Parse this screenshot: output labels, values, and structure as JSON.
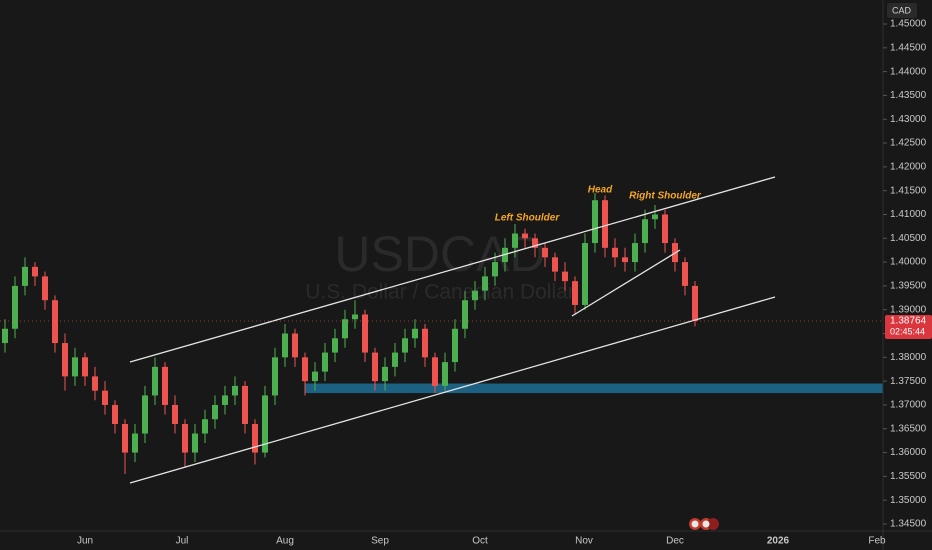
{
  "chart_data": {
    "type": "candlestick",
    "symbol": "USDCAD",
    "description": "U.S. Dollar / Canadian Dollar",
    "currency": "CAD",
    "up_color": "#4caf50",
    "down_color": "#ef5350",
    "grid": false,
    "categories": [
      "Jun",
      "Jul",
      "Aug",
      "Sep",
      "Oct",
      "Nov",
      "Dec",
      "2026",
      "Feb"
    ],
    "ylim": [
      1.34374,
      1.45504
    ],
    "yticks": [
      {
        "value": 1.345,
        "label": "1.34500"
      },
      {
        "value": 1.35,
        "label": "1.35000"
      },
      {
        "value": 1.355,
        "label": "1.35500"
      },
      {
        "value": 1.36,
        "label": "1.36000"
      },
      {
        "value": 1.365,
        "label": "1.36500"
      },
      {
        "value": 1.37,
        "label": "1.37000"
      },
      {
        "value": 1.375,
        "label": "1.37500"
      },
      {
        "value": 1.38,
        "label": "1.38000"
      },
      {
        "value": 1.385,
        "label": "1.38500"
      },
      {
        "value": 1.39,
        "label": "1.39000"
      },
      {
        "value": 1.395,
        "label": "1.39500"
      },
      {
        "value": 1.4,
        "label": "1.40000"
      },
      {
        "value": 1.405,
        "label": "1.40500"
      },
      {
        "value": 1.41,
        "label": "1.41000"
      },
      {
        "value": 1.415,
        "label": "1.41500"
      },
      {
        "value": 1.42,
        "label": "1.42000"
      },
      {
        "value": 1.425,
        "label": "1.42500"
      },
      {
        "value": 1.43,
        "label": "1.43000"
      },
      {
        "value": 1.435,
        "label": "1.43500"
      },
      {
        "value": 1.44,
        "label": "1.44000"
      },
      {
        "value": 1.445,
        "label": "1.44500"
      },
      {
        "value": 1.45,
        "label": "1.45000"
      }
    ],
    "last_price": 1.38764,
    "countdown": "02:45:44",
    "zone": [
      1.3725,
      1.3745
    ],
    "annotations": [
      "Left Shoulder",
      "Head",
      "Right Shoulder"
    ],
    "candles": [
      [
        1.383,
        1.388,
        1.381,
        1.386
      ],
      [
        1.386,
        1.397,
        1.384,
        1.395
      ],
      [
        1.395,
        1.401,
        1.393,
        1.399
      ],
      [
        1.399,
        1.4,
        1.395,
        1.397
      ],
      [
        1.397,
        1.398,
        1.39,
        1.392
      ],
      [
        1.392,
        1.393,
        1.381,
        1.383
      ],
      [
        1.383,
        1.385,
        1.373,
        1.376
      ],
      [
        1.376,
        1.382,
        1.374,
        1.38
      ],
      [
        1.38,
        1.381,
        1.374,
        1.376
      ],
      [
        1.376,
        1.378,
        1.371,
        1.373
      ],
      [
        1.373,
        1.375,
        1.368,
        1.37
      ],
      [
        1.37,
        1.371,
        1.364,
        1.366
      ],
      [
        1.366,
        1.367,
        1.3555,
        1.36
      ],
      [
        1.36,
        1.366,
        1.358,
        1.364
      ],
      [
        1.364,
        1.374,
        1.362,
        1.372
      ],
      [
        1.372,
        1.38,
        1.37,
        1.378
      ],
      [
        1.378,
        1.379,
        1.368,
        1.37
      ],
      [
        1.37,
        1.372,
        1.364,
        1.366
      ],
      [
        1.366,
        1.367,
        1.357,
        1.36
      ],
      [
        1.36,
        1.366,
        1.358,
        1.364
      ],
      [
        1.364,
        1.369,
        1.362,
        1.367
      ],
      [
        1.367,
        1.372,
        1.365,
        1.37
      ],
      [
        1.37,
        1.374,
        1.368,
        1.372
      ],
      [
        1.372,
        1.376,
        1.37,
        1.374
      ],
      [
        1.374,
        1.375,
        1.364,
        1.366
      ],
      [
        1.366,
        1.367,
        1.3575,
        1.36
      ],
      [
        1.36,
        1.374,
        1.359,
        1.372
      ],
      [
        1.372,
        1.382,
        1.37,
        1.38
      ],
      [
        1.38,
        1.387,
        1.378,
        1.385
      ],
      [
        1.385,
        1.386,
        1.378,
        1.38
      ],
      [
        1.38,
        1.381,
        1.372,
        1.375
      ],
      [
        1.375,
        1.379,
        1.373,
        1.377
      ],
      [
        1.377,
        1.383,
        1.375,
        1.381
      ],
      [
        1.381,
        1.386,
        1.379,
        1.384
      ],
      [
        1.384,
        1.39,
        1.382,
        1.388
      ],
      [
        1.388,
        1.392,
        1.386,
        1.389
      ],
      [
        1.389,
        1.39,
        1.379,
        1.381
      ],
      [
        1.381,
        1.382,
        1.373,
        1.375
      ],
      [
        1.375,
        1.38,
        1.373,
        1.378
      ],
      [
        1.378,
        1.383,
        1.376,
        1.381
      ],
      [
        1.381,
        1.386,
        1.379,
        1.384
      ],
      [
        1.384,
        1.388,
        1.382,
        1.386
      ],
      [
        1.386,
        1.387,
        1.378,
        1.38
      ],
      [
        1.38,
        1.381,
        1.3725,
        1.374
      ],
      [
        1.374,
        1.381,
        1.373,
        1.379
      ],
      [
        1.379,
        1.388,
        1.377,
        1.386
      ],
      [
        1.386,
        1.394,
        1.384,
        1.392
      ],
      [
        1.392,
        1.396,
        1.39,
        1.394
      ],
      [
        1.394,
        1.399,
        1.392,
        1.397
      ],
      [
        1.397,
        1.402,
        1.395,
        1.4
      ],
      [
        1.4,
        1.405,
        1.398,
        1.403
      ],
      [
        1.403,
        1.408,
        1.401,
        1.406
      ],
      [
        1.406,
        1.407,
        1.403,
        1.405
      ],
      [
        1.405,
        1.406,
        1.401,
        1.403
      ],
      [
        1.403,
        1.404,
        1.399,
        1.401
      ],
      [
        1.401,
        1.402,
        1.396,
        1.398
      ],
      [
        1.398,
        1.4,
        1.394,
        1.396
      ],
      [
        1.396,
        1.397,
        1.389,
        1.391
      ],
      [
        1.391,
        1.406,
        1.39,
        1.404
      ],
      [
        1.404,
        1.4145,
        1.402,
        1.413
      ],
      [
        1.413,
        1.414,
        1.401,
        1.403
      ],
      [
        1.403,
        1.405,
        1.399,
        1.401
      ],
      [
        1.401,
        1.403,
        1.398,
        1.4
      ],
      [
        1.4,
        1.406,
        1.398,
        1.404
      ],
      [
        1.404,
        1.411,
        1.402,
        1.409
      ],
      [
        1.409,
        1.412,
        1.407,
        1.41
      ],
      [
        1.41,
        1.411,
        1.402,
        1.404
      ],
      [
        1.404,
        1.405,
        1.398,
        1.4
      ],
      [
        1.4,
        1.401,
        1.393,
        1.395
      ],
      [
        1.395,
        1.396,
        1.3865,
        1.38764
      ]
    ]
  }
}
